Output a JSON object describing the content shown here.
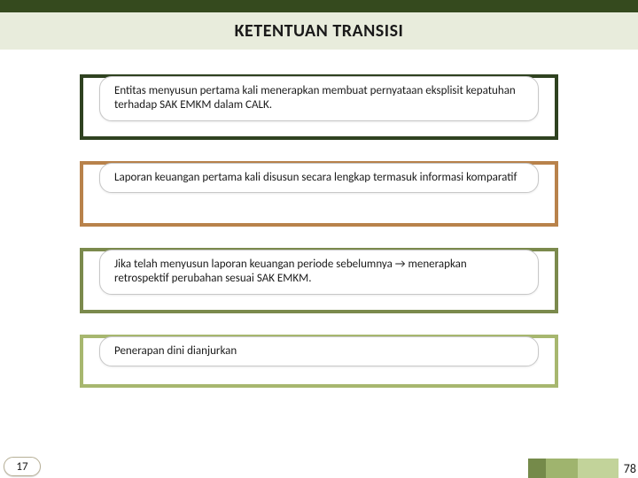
{
  "title": "KETENTUAN TRANSISI",
  "items": [
    {
      "text": "Entitas menyusun pertama kali menerapkan membuat pernyataan eksplisit kepatuhan terhadap SAK EMKM dalam CALK.",
      "border_color": "#2f4220",
      "short": false
    },
    {
      "text": "Laporan keuangan pertama kali disusun secara lengkap termasuk informasi komparatif",
      "border_color": "#b8824b",
      "short": false
    },
    {
      "text": "Jika telah menyusun laporan keuangan periode sebelumnya → menerapkan retrospektif perubahan sesuai SAK EMKM.",
      "border_color": "#7b8a4d",
      "short": false
    },
    {
      "text": "Penerapan dini dianjurkan",
      "border_color": "#a7b76f",
      "short": true
    }
  ],
  "footer": {
    "left_number": "17",
    "right_number": "78",
    "block_colors": [
      "#758a4a",
      "#9fb46e",
      "#c2d39a"
    ]
  },
  "colors": {
    "top_bar": "#354a1e",
    "header_band": "#e8ecdc"
  }
}
